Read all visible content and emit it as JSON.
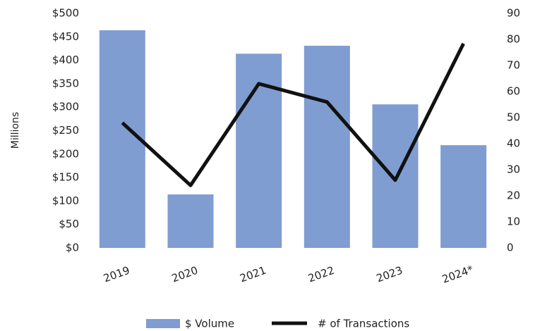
{
  "chart_data": {
    "type": "bar",
    "y_label": "Millions",
    "categories": [
      "2019",
      "2020",
      "2021",
      "2022",
      "2023",
      "2024*"
    ],
    "series": [
      {
        "name": "$ Volume",
        "type": "bar",
        "color": "#7f9dd1",
        "values": [
          464,
          114,
          414,
          431,
          306,
          219
        ]
      },
      {
        "name": "# of Transactions",
        "type": "line",
        "axis": "y2",
        "color": "#111111",
        "values": [
          48,
          24,
          63,
          56,
          26,
          78.4
        ]
      }
    ],
    "ylim": [
      0,
      500
    ],
    "yticks": [
      {
        "value": 0,
        "label": "$0"
      },
      {
        "value": 50,
        "label": "$50"
      },
      {
        "value": 100,
        "label": "$100"
      },
      {
        "value": 150,
        "label": "$150"
      },
      {
        "value": 200,
        "label": "$200"
      },
      {
        "value": 250,
        "label": "$250"
      },
      {
        "value": 300,
        "label": "$300"
      },
      {
        "value": 350,
        "label": "$350"
      },
      {
        "value": 400,
        "label": "$400"
      },
      {
        "value": 450,
        "label": "$450"
      },
      {
        "value": 500,
        "label": "$500"
      }
    ],
    "y2lim": [
      0,
      90
    ],
    "y2ticks": [
      0,
      10,
      20,
      30,
      40,
      50,
      60,
      70,
      80,
      90
    ],
    "legend": "bottom"
  }
}
